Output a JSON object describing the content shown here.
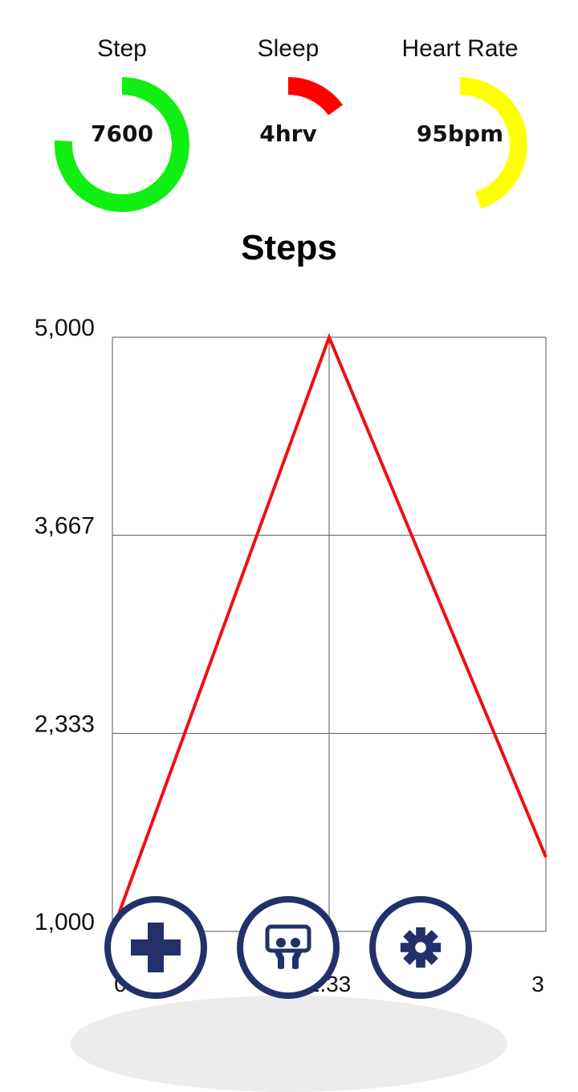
{
  "metrics": [
    {
      "id": "step",
      "label": "Step",
      "value": "7600",
      "color": "#11ee11",
      "fill_fraction": 0.76
    },
    {
      "id": "sleep",
      "label": "Sleep",
      "value": "4hrv",
      "color": "#ff0000",
      "fill_fraction": 0.15
    },
    {
      "id": "heart",
      "label": "Heart Rate",
      "value": "95bpm",
      "color": "#ffff00",
      "fill_fraction": 0.45
    }
  ],
  "chart_title": "Steps",
  "chart_data": {
    "type": "line",
    "title": "Steps",
    "x": [
      0,
      1.5,
      3
    ],
    "series": [
      {
        "values": [
          1000,
          5000,
          1500
        ],
        "color": "#ee1111"
      }
    ],
    "ylim": [
      1000,
      5000
    ],
    "xlim": [
      0,
      3
    ],
    "y_ticks": [
      "5,000",
      "3,667",
      "2,333",
      "1,000"
    ],
    "x_ticks": [
      "0",
      "1.33",
      "3"
    ],
    "grid": true
  },
  "actions": [
    {
      "id": "add",
      "icon": "plus-icon"
    },
    {
      "id": "share",
      "icon": "slideshare-icon"
    },
    {
      "id": "settings",
      "icon": "gear-icon"
    }
  ],
  "icon_color": "#24306a"
}
